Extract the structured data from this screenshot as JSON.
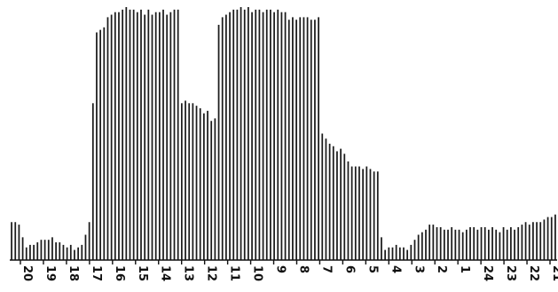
{
  "chart_data": {
    "type": "bar",
    "title": "",
    "xlabel": "",
    "ylabel": "",
    "ylim": [
      0,
      100
    ],
    "grid": false,
    "color": "#1b1b1b",
    "x_tick_labels": [
      "20",
      "19",
      "18",
      "17",
      "16",
      "15",
      "14",
      "13",
      "12",
      "11",
      "10",
      "9",
      "8",
      "7",
      "6",
      "5",
      "4",
      "3",
      "2",
      "1",
      "24",
      "23",
      "22",
      "21"
    ],
    "values": [
      15,
      15,
      14,
      9,
      5,
      6,
      6,
      7,
      8,
      8,
      8,
      9,
      7,
      7,
      6,
      5,
      6,
      4,
      5,
      6,
      10,
      15,
      62,
      90,
      91,
      92,
      96,
      97,
      98,
      98,
      99,
      100,
      99,
      99,
      98,
      99,
      97,
      99,
      97,
      98,
      98,
      99,
      97,
      98,
      99,
      99,
      62,
      63,
      62,
      62,
      61,
      60,
      58,
      59,
      55,
      56,
      93,
      96,
      97,
      98,
      99,
      99,
      100,
      99,
      100,
      98,
      99,
      99,
      98,
      99,
      99,
      98,
      99,
      98,
      98,
      95,
      96,
      95,
      96,
      96,
      96,
      95,
      95,
      96,
      50,
      48,
      46,
      45,
      43,
      44,
      42,
      39,
      37,
      37,
      37,
      36,
      37,
      36,
      35,
      35,
      9,
      4,
      5,
      5,
      6,
      5,
      5,
      4,
      6,
      8,
      10,
      11,
      12,
      14,
      14,
      13,
      13,
      12,
      12,
      13,
      12,
      12,
      11,
      12,
      13,
      13,
      12,
      13,
      13,
      12,
      13,
      12,
      11,
      13,
      12,
      13,
      12,
      13,
      14,
      15,
      14,
      15,
      15,
      15,
      16,
      17,
      17,
      18
    ]
  }
}
